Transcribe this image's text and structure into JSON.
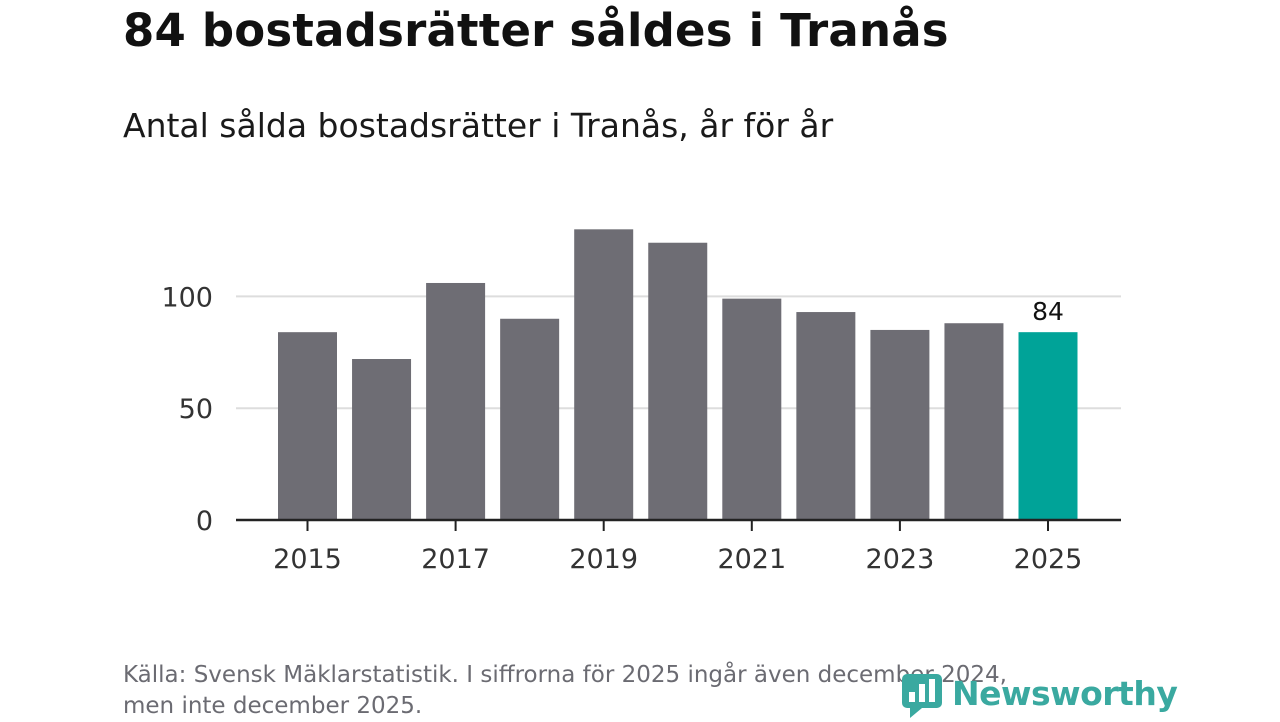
{
  "header": {
    "title": "84 bostadsrätter såldes i Tranås",
    "subtitle": "Antal sålda bostadsrätter i Tranås, år för år"
  },
  "footer": {
    "source_line1": "Källa: Svensk Mäklarstatistik. I siffrorna för 2025 ingår även december 2024,",
    "source_line2": "men inte december 2025.",
    "brand": "Newsworthy"
  },
  "colors": {
    "bar": "#6e6d74",
    "highlight": "#00a398",
    "grid": "#dddddd",
    "axis": "#222222",
    "brand": "#3aa9a0"
  },
  "chart_data": {
    "type": "bar",
    "title": "Antal sålda bostadsrätter i Tranås, år för år",
    "xlabel": "",
    "ylabel": "",
    "categories": [
      "2015",
      "2016",
      "2017",
      "2018",
      "2019",
      "2020",
      "2021",
      "2022",
      "2023",
      "2024",
      "2025"
    ],
    "values": [
      84,
      72,
      106,
      90,
      130,
      124,
      99,
      93,
      85,
      88,
      84
    ],
    "ylim": [
      0,
      130
    ],
    "yticks": [
      0,
      50,
      100
    ],
    "xtick_labels": [
      "2015",
      "2017",
      "2019",
      "2021",
      "2023",
      "2025"
    ],
    "highlight_category": "2025",
    "data_labels": [
      {
        "category": "2025",
        "text": "84"
      }
    ],
    "grid": true
  }
}
